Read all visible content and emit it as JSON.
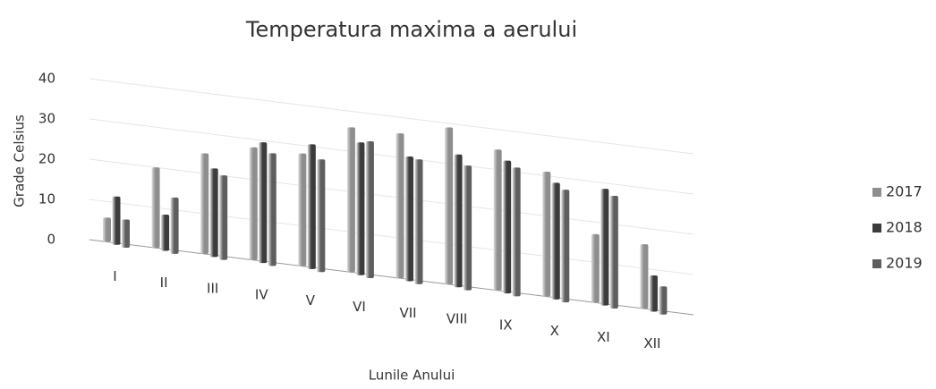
{
  "chart_data": {
    "type": "bar3d",
    "title": "Temperatura maxima a aerului",
    "xlabel": "Lunile Anului",
    "ylabel": "Grade Celsius",
    "categories": [
      "I",
      "II",
      "III",
      "IV",
      "V",
      "VI",
      "VII",
      "VIII",
      "IX",
      "X",
      "XI",
      "XII"
    ],
    "series": [
      {
        "name": "2017",
        "color": "#8e8e8e",
        "values": [
          6,
          20,
          25,
          28,
          28,
          36,
          36,
          39,
          35,
          31,
          17,
          16
        ]
      },
      {
        "name": "2018",
        "color": "#3c3c3c",
        "values": [
          12,
          9,
          22,
          30,
          31,
          33,
          31,
          33,
          33,
          29,
          29,
          9
        ]
      },
      {
        "name": "2019",
        "color": "#5e5e5e",
        "values": [
          7,
          14,
          21,
          28,
          28,
          34,
          31,
          31,
          32,
          28,
          28,
          7
        ]
      }
    ],
    "ylim": [
      0,
      40
    ],
    "yticks": [
      0,
      10,
      20,
      30,
      40
    ],
    "grid": true,
    "legend": "right"
  }
}
